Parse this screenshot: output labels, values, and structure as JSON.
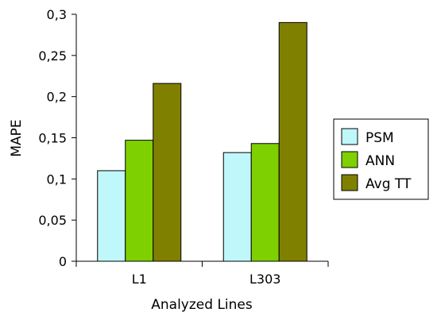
{
  "chart_data": {
    "type": "bar",
    "categories": [
      "L1",
      "L303"
    ],
    "series": [
      {
        "name": "PSM",
        "values": [
          0.11,
          0.132
        ],
        "color": "#bff7fb"
      },
      {
        "name": "ANN",
        "values": [
          0.147,
          0.143
        ],
        "color": "#7fd000"
      },
      {
        "name": "Avg TT",
        "values": [
          0.216,
          0.29
        ],
        "color": "#808000"
      }
    ],
    "title": "",
    "xlabel": "Analyzed Lines",
    "ylabel": "MAPE",
    "ylim": [
      0,
      0.3
    ],
    "yticks": [
      0,
      0.05,
      0.1,
      0.15,
      0.2,
      0.25,
      0.3
    ],
    "ytick_labels": [
      "0",
      "0,05",
      "0,1",
      "0,15",
      "0,2",
      "0,25",
      "0,3"
    ],
    "grid": false,
    "legend_position": "right"
  }
}
